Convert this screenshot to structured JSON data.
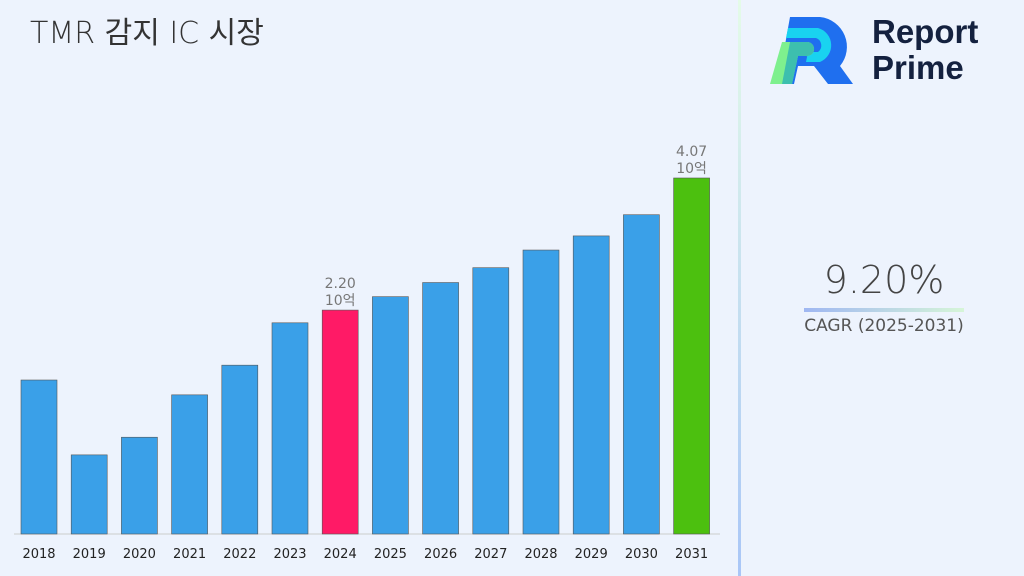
{
  "title": "TMR 감지 IC 시장",
  "logo": {
    "line1": "Report",
    "line2": "Prime"
  },
  "cagr": {
    "value": "9.20%",
    "label": "CAGR (2025-2031)"
  },
  "colors": {
    "default": "#3aa0e8",
    "highlight_2024": "#ff1a66",
    "highlight_2031": "#4cc00f"
  },
  "chart_data": {
    "type": "bar",
    "title": "TMR 감지 IC 시장",
    "categories": [
      "2018",
      "2019",
      "2020",
      "2021",
      "2022",
      "2023",
      "2024",
      "2025",
      "2026",
      "2027",
      "2028",
      "2029",
      "2030",
      "2031"
    ],
    "values": [
      1.21,
      0.15,
      0.4,
      1.0,
      1.42,
      2.02,
      2.2,
      2.39,
      2.59,
      2.8,
      3.05,
      3.25,
      3.55,
      4.07
    ],
    "data_labels": [
      {
        "category": "2024",
        "value": "2.20",
        "unit": "10억"
      },
      {
        "category": "2031",
        "value": "4.07",
        "unit": "10억"
      }
    ],
    "ylim": [
      -0.97,
      4.07
    ],
    "grid": false,
    "legend": "none"
  }
}
